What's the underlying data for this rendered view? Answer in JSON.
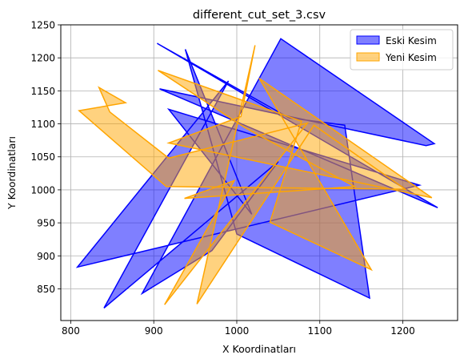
{
  "chart_data": {
    "type": "area",
    "title": "different_cut_set_3.csv",
    "xlabel": "X Koordinatları",
    "ylabel": "Y Koordinatları",
    "xlim": [
      788,
      1266
    ],
    "ylim": [
      802,
      1250
    ],
    "xticks": [
      800,
      900,
      1000,
      1100,
      1200
    ],
    "yticks": [
      850,
      900,
      950,
      1000,
      1050,
      1100,
      1150,
      1200,
      1250
    ],
    "grid": true,
    "legend_position": "upper-right",
    "series": [
      {
        "name": "Eski Kesim",
        "fill_color": "#0000ff",
        "fill_opacity": 0.5,
        "line_color": "#0000ff",
        "points": [
          [
            904,
            1222
          ],
          [
            1063,
            1109
          ],
          [
            1130,
            1098
          ],
          [
            1160,
            836
          ],
          [
            1000,
            933
          ],
          [
            938,
            1213
          ],
          [
            1018,
            963
          ],
          [
            918,
            1122
          ],
          [
            1220,
            1007
          ],
          [
            808,
            883
          ],
          [
            990,
            1165
          ],
          [
            840,
            821
          ],
          [
            1050,
            1043
          ],
          [
            970,
            908
          ],
          [
            886,
            843
          ],
          [
            1053,
            1229
          ],
          [
            1238,
            1070
          ],
          [
            1228,
            1067
          ],
          [
            907,
            1153
          ],
          [
            1242,
            973
          ],
          [
            904,
            1222
          ]
        ]
      },
      {
        "name": "Yeni Kesim",
        "fill_color": "#ffa500",
        "fill_opacity": 0.5,
        "line_color": "#ffa500",
        "points": [
          [
            905,
            1181
          ],
          [
            1078,
            1104
          ],
          [
            1040,
            951
          ],
          [
            1162,
            879
          ],
          [
            1027,
            1169
          ],
          [
            1235,
            988
          ],
          [
            918,
            1071
          ],
          [
            1005,
            1111
          ],
          [
            1022,
            1219
          ],
          [
            952,
            827
          ],
          [
            1093,
            1098
          ],
          [
            1203,
            1001
          ],
          [
            915,
            1005
          ],
          [
            810,
            1120
          ],
          [
            866,
            1132
          ],
          [
            834,
            1155
          ],
          [
            847,
            1118
          ],
          [
            918,
            1048
          ],
          [
            1085,
            1101
          ],
          [
            913,
            826
          ],
          [
            997,
            1014
          ],
          [
            937,
            987
          ],
          [
            1142,
            1005
          ],
          [
            1010,
            1094
          ],
          [
            905,
            1181
          ]
        ]
      }
    ]
  }
}
